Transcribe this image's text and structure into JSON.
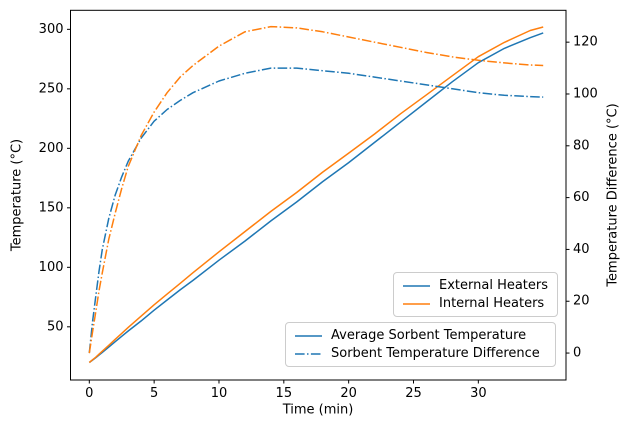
{
  "chart_data": {
    "type": "line",
    "title": "",
    "xlabel": "Time (min)",
    "ylabel_left": "Temperature (°C)",
    "ylabel_right": "Temperature Difference (°C)",
    "grid": false,
    "xlim": [
      -1.45,
      36.76
    ],
    "ylim_left": [
      5.3,
      316.0
    ],
    "ylim_right": [
      -10.4,
      132.3
    ],
    "xticks": [
      0,
      5,
      10,
      15,
      20,
      25,
      30
    ],
    "yticks_left": [
      50,
      100,
      150,
      200,
      250,
      300
    ],
    "yticks_right": [
      0,
      20,
      40,
      60,
      80,
      100,
      120
    ],
    "x": [
      0,
      0.25,
      0.5,
      0.75,
      1,
      1.5,
      2,
      2.5,
      3,
      4,
      5,
      6,
      7,
      8,
      10,
      12,
      14,
      16,
      18,
      20,
      22,
      24,
      26,
      28,
      30,
      32,
      34,
      35
    ],
    "series": [
      {
        "name": "External Heaters - Average Sorbent Temperature",
        "axis": "left",
        "style": "solid",
        "color": "#1f77b4",
        "values": [
          20,
          22,
          24,
          26.2,
          28.5,
          33,
          37.5,
          42,
          46.5,
          55,
          64,
          72.5,
          81,
          89,
          106,
          122,
          139,
          155,
          172,
          188,
          205,
          222,
          239,
          256,
          272,
          284,
          293,
          297
        ]
      },
      {
        "name": "Internal Heaters - Average Sorbent Temperature",
        "axis": "left",
        "style": "solid",
        "color": "#ff7f0e",
        "values": [
          20,
          22.3,
          24.5,
          27,
          29.5,
          34.5,
          39.5,
          44.5,
          49.5,
          59,
          68.5,
          77.5,
          86.5,
          95.5,
          113,
          130,
          147,
          163,
          180,
          196,
          212,
          229,
          245,
          261,
          277,
          289,
          299,
          302
        ]
      },
      {
        "name": "External Heaters - Sorbent Temperature Difference",
        "axis": "right",
        "style": "dashdot",
        "color": "#1f77b4",
        "values": [
          0,
          12,
          22,
          31.5,
          40,
          52,
          61,
          68,
          74,
          83,
          89.5,
          94,
          97.5,
          100.5,
          105,
          108,
          110,
          110,
          109,
          108,
          106.5,
          105,
          103.5,
          102,
          100.5,
          99.5,
          99,
          98.8
        ]
      },
      {
        "name": "Internal Heaters - Sorbent Temperature Difference",
        "axis": "right",
        "style": "dashdot",
        "color": "#ff7f0e",
        "values": [
          0,
          8,
          16,
          24,
          31,
          44,
          54,
          63.5,
          72,
          84,
          93,
          100.5,
          106.5,
          111,
          118.5,
          124,
          126,
          125.5,
          124,
          122,
          120,
          118,
          116,
          114.3,
          113,
          112,
          111.2,
          111
        ]
      }
    ],
    "legend_positions": [
      "center right inside axes",
      "lower right inside axes"
    ]
  },
  "axes_text": {
    "xlabel": "Time (min)",
    "ylabel_left": "Temperature (°C)",
    "ylabel_right": "Temperature Difference (°C)"
  },
  "legend_heaters": {
    "items": [
      {
        "label": "External Heaters",
        "color": "#1f77b4",
        "style": "solid"
      },
      {
        "label": "Internal Heaters",
        "color": "#ff7f0e",
        "style": "solid"
      }
    ]
  },
  "legend_sorbent": {
    "items": [
      {
        "label": "Average Sorbent Temperature",
        "color": "#1f77b4",
        "style": "solid"
      },
      {
        "label": "Sorbent Temperature Difference",
        "color": "#1f77b4",
        "style": "dashdot"
      }
    ]
  },
  "colors": {
    "external": "#1f77b4",
    "internal": "#ff7f0e",
    "spine": "#000000",
    "legend_border": "#cccccc",
    "background": "#ffffff"
  }
}
